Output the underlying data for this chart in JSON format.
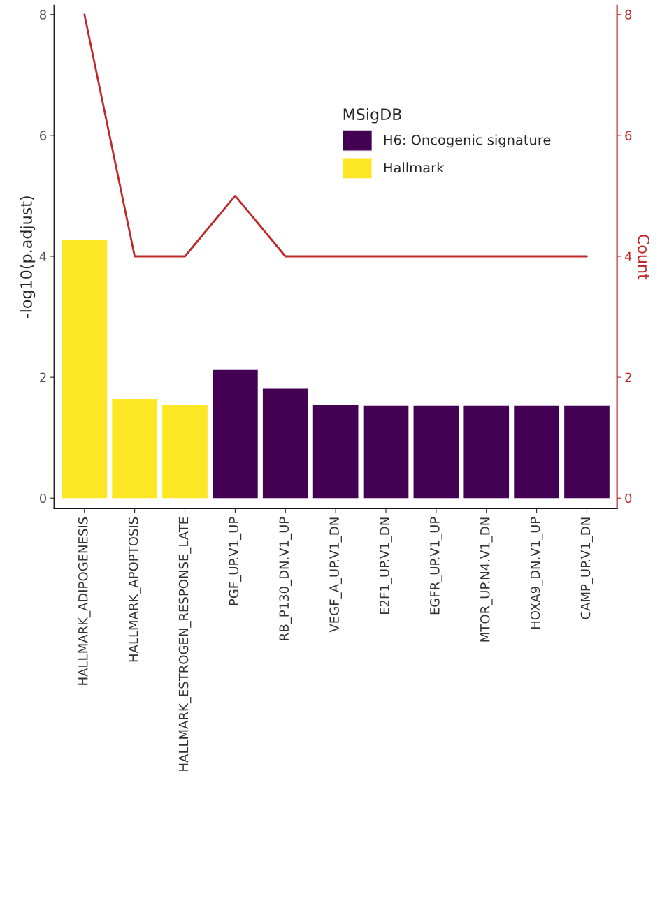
{
  "chart_data": {
    "type": "bar",
    "categories": [
      "HALLMARK_ADIPOGENESIS",
      "HALLMARK_APOPTOSIS",
      "HALLMARK_ESTROGEN_RESPONSE_LATE",
      "PGF_UP.V1_UP",
      "RB_P130_DN.V1_UP",
      "VEGF_A_UP.V1_DN",
      "E2F1_UP.V1_DN",
      "EGFR_UP.V1_UP",
      "MTOR_UP.N4.V1_DN",
      "HOXA9_DN.V1_UP",
      "CAMP_UP.V1_DN"
    ],
    "series": [
      {
        "name": "H6: Oncogenic signature",
        "color": "#440154",
        "values": [
          null,
          null,
          null,
          2.12,
          1.81,
          1.54,
          1.53,
          1.53,
          1.53,
          1.53,
          1.53
        ]
      },
      {
        "name": "Hallmark",
        "color": "#fde725",
        "values": [
          4.27,
          1.64,
          1.54,
          null,
          null,
          null,
          null,
          null,
          null,
          null,
          null
        ]
      },
      {
        "type": "line",
        "axis": "y2",
        "color": "#c0282a",
        "values": [
          8,
          4,
          4,
          5,
          4,
          4,
          4,
          4,
          4,
          4,
          4
        ]
      }
    ],
    "ylabel": "-log10(p.adjust)",
    "y2label": "Count",
    "legend_title": "MSigDB",
    "ylim": [
      -0.17,
      8.15
    ],
    "yticks": [
      0,
      2,
      4,
      6,
      8
    ],
    "y2lim": [
      -0.17,
      8.15
    ],
    "y2ticks": [
      0,
      2,
      4,
      6,
      8
    ],
    "legend": "top right",
    "grid": false,
    "marker": "none",
    "line_style": "solid"
  }
}
